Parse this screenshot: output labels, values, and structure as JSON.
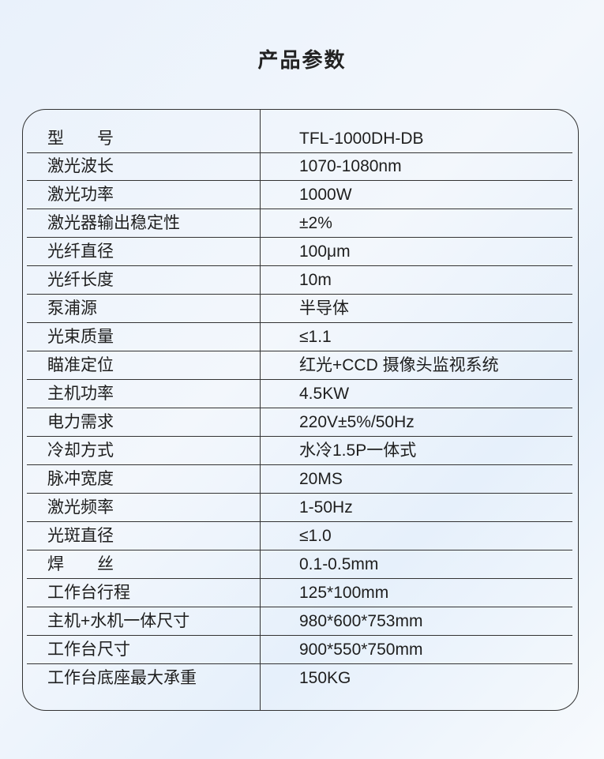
{
  "title": "产品参数",
  "rows": [
    {
      "label": "型　　号",
      "value": "TFL-1000DH-DB"
    },
    {
      "label": "激光波长",
      "value": "1070-1080nm"
    },
    {
      "label": "激光功率",
      "value": "1000W"
    },
    {
      "label": "激光器输出稳定性",
      "value": "±2%"
    },
    {
      "label": "光纤直径",
      "value": "100μm"
    },
    {
      "label": "光纤长度",
      "value": "10m"
    },
    {
      "label": "泵浦源",
      "value": "半导体"
    },
    {
      "label": "光束质量",
      "value": "≤1.1"
    },
    {
      "label": "瞄准定位",
      "value": "红光+CCD 摄像头监视系统"
    },
    {
      "label": "主机功率",
      "value": "4.5KW"
    },
    {
      "label": "电力需求",
      "value": "220V±5%/50Hz"
    },
    {
      "label": "冷却方式",
      "value": "水冷1.5P一体式"
    },
    {
      "label": "脉冲宽度",
      "value": "20MS"
    },
    {
      "label": "激光频率",
      "value": "1-50Hz"
    },
    {
      "label": "光斑直径",
      "value": "≤1.0"
    },
    {
      "label": "焊　　丝",
      "value": "0.1-0.5mm"
    },
    {
      "label": "工作台行程",
      "value": "125*100mm"
    },
    {
      "label": "主机+水机一体尺寸",
      "value": "980*600*753mm"
    },
    {
      "label": "工作台尺寸",
      "value": "900*550*750mm"
    },
    {
      "label": "工作台底座最大承重",
      "value": "150KG"
    }
  ]
}
